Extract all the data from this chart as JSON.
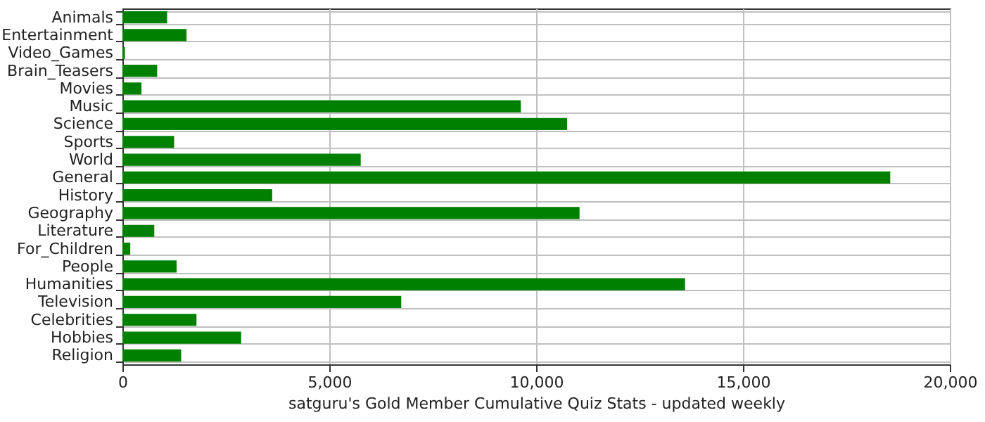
{
  "chart_data": {
    "type": "bar",
    "orientation": "horizontal",
    "categories": [
      "Animals",
      "Entertainment",
      "Video_Games",
      "Brain_Teasers",
      "Movies",
      "Music",
      "Science",
      "Sports",
      "World",
      "General",
      "History",
      "Geography",
      "Literature",
      "For_Children",
      "People",
      "Humanities",
      "Television",
      "Celebrities",
      "Hobbies",
      "Religion"
    ],
    "values": [
      1080,
      1550,
      60,
      840,
      460,
      9630,
      10750,
      1250,
      5760,
      18560,
      3620,
      11050,
      770,
      190,
      1310,
      13600,
      6740,
      1790,
      2870,
      1420
    ],
    "color": "#008000",
    "xlabel": "satguru's Gold Member Cumulative Quiz Stats - updated weekly",
    "xlim": [
      0,
      20000
    ],
    "xticks": [
      {
        "value": 0,
        "label": "0"
      },
      {
        "value": 5000,
        "label": "5,000"
      },
      {
        "value": 10000,
        "label": "10,000"
      },
      {
        "value": 15000,
        "label": "15,000"
      },
      {
        "value": 20000,
        "label": "20,000"
      }
    ],
    "grid": true
  }
}
